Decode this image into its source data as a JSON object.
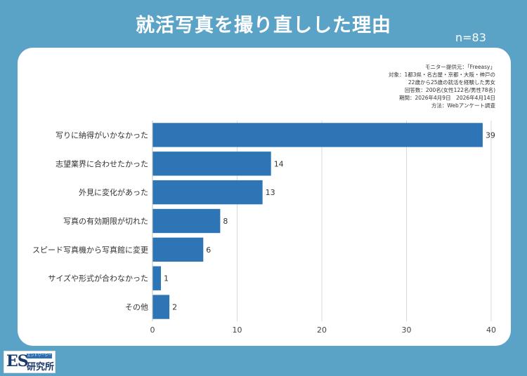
{
  "page": {
    "title": "就活写真を撮り直しした理由",
    "n_label": "n=83"
  },
  "meta": {
    "lines": [
      "モニター提供元：「Freeasy」",
      "対象：1都3県・名古屋・京都・大阪・神戸の",
      "22歳から25歳の就活を経験した男女",
      "回答数：200名(女性122名/男性78名)",
      "期間：2026年4月9日　2026年4月14日",
      "方法：Webアンケート調査"
    ]
  },
  "logo": {
    "mark": "ES",
    "tag": "エントリーシート",
    "name": "研究所"
  },
  "chart_data": {
    "type": "bar",
    "orientation": "horizontal",
    "categories": [
      "写りに納得がいかなかった",
      "志望業界に合わせたかった",
      "外見に変化があった",
      "写真の有効期限が切れた",
      "スピード写真機から写真館に変更",
      "サイズや形式が合わなかった",
      "その他"
    ],
    "values": [
      39,
      14,
      13,
      8,
      6,
      1,
      2
    ],
    "xlim": [
      0,
      40
    ],
    "xticks": [
      0,
      10,
      20,
      30,
      40
    ],
    "grid": true,
    "bar_color": "#2e75b6",
    "data_labels": true
  }
}
